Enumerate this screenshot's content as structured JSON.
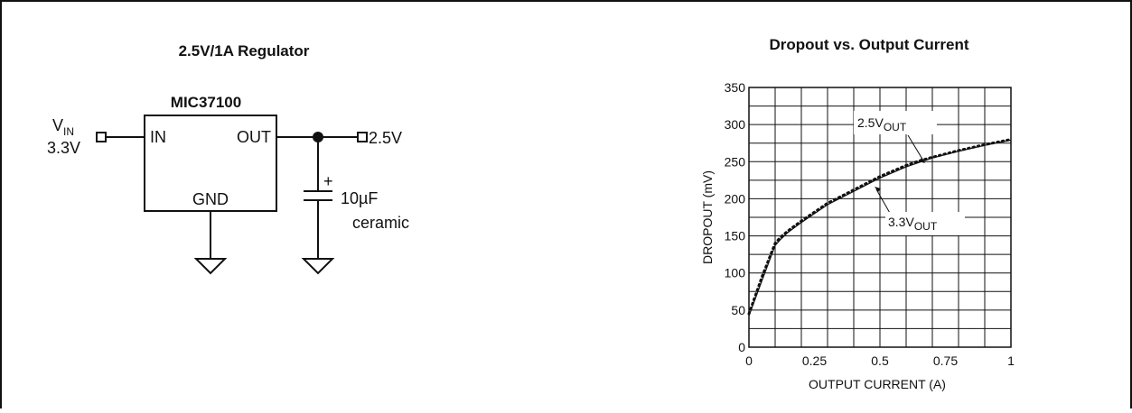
{
  "schematic": {
    "title": "2.5V/1A Regulator",
    "chip_name": "MIC37100",
    "pin_in": "IN",
    "pin_out": "OUT",
    "pin_gnd": "GND",
    "vin_label_main": "V",
    "vin_label_sub": "IN",
    "vin_value": "3.3V",
    "vout_value": "2.5V",
    "cap_polarity": "+",
    "cap_value": "10µF",
    "cap_type": "ceramic"
  },
  "chart_data": {
    "type": "line",
    "title": "Dropout vs. Output Current",
    "xlabel": "OUTPUT CURRENT (A)",
    "ylabel": "DROPOUT (mV)",
    "xlim": [
      0,
      1
    ],
    "ylim": [
      0,
      350
    ],
    "x_ticks": [
      0,
      0.25,
      0.5,
      0.75,
      1
    ],
    "x_tick_labels": [
      "0",
      "0.25",
      "0.5",
      "0.75",
      "1"
    ],
    "y_ticks": [
      0,
      50,
      100,
      150,
      200,
      250,
      300,
      350
    ],
    "y_tick_labels": [
      "0",
      "50",
      "100",
      "150",
      "200",
      "250",
      "300",
      "350"
    ],
    "grid": true,
    "series": [
      {
        "name_main": "2.5V",
        "name_sub": "OUT",
        "style": "dotted",
        "x": [
          0,
          0.05,
          0.1,
          0.12,
          0.15,
          0.2,
          0.25,
          0.3,
          0.4,
          0.5,
          0.6,
          0.65,
          0.7,
          0.8,
          0.9,
          1.0
        ],
        "y": [
          45,
          95,
          140,
          148,
          157,
          170,
          182,
          194,
          212,
          230,
          245,
          251,
          256,
          265,
          273,
          280
        ]
      },
      {
        "name_main": "3.3V",
        "name_sub": "OUT",
        "style": "solid",
        "x": [
          0,
          0.05,
          0.1,
          0.12,
          0.15,
          0.2,
          0.25,
          0.3,
          0.4,
          0.5,
          0.6,
          0.65,
          0.7,
          0.8,
          0.9,
          1.0
        ],
        "y": [
          42,
          90,
          137,
          145,
          155,
          168,
          180,
          192,
          210,
          228,
          243,
          249,
          255,
          264,
          272,
          279
        ]
      }
    ]
  }
}
